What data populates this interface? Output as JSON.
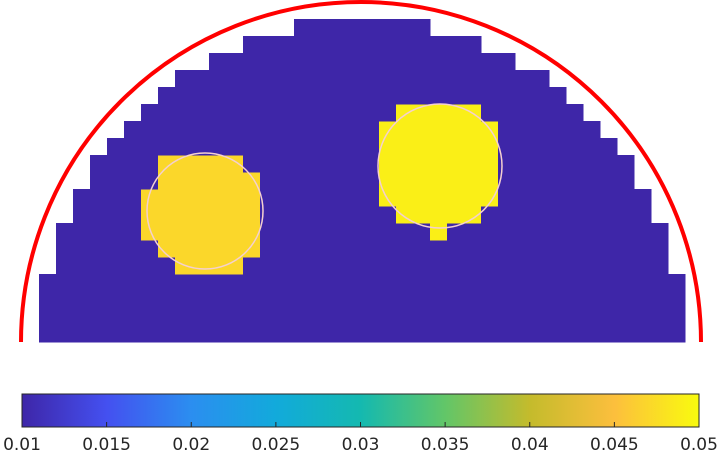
{
  "chart_data": {
    "type": "heatmap",
    "regions": [
      {
        "name": "background",
        "value": 0.01
      },
      {
        "name": "inclusion-left",
        "value": 0.047
      },
      {
        "name": "inclusion-right",
        "value": 0.049
      }
    ],
    "colormap": [
      "#3e26a8",
      "#4450f0",
      "#2b8ef0",
      "#12aadb",
      "#14b9b0",
      "#62c668",
      "#c4bb2c",
      "#fcbf3d",
      "#f9fb0e"
    ],
    "clim": [
      0.01,
      0.05
    ],
    "cticks": [
      0.01,
      0.015,
      0.02,
      0.025,
      0.03,
      0.035,
      0.04,
      0.045,
      0.05
    ],
    "boundary_color": "#ff0000"
  }
}
